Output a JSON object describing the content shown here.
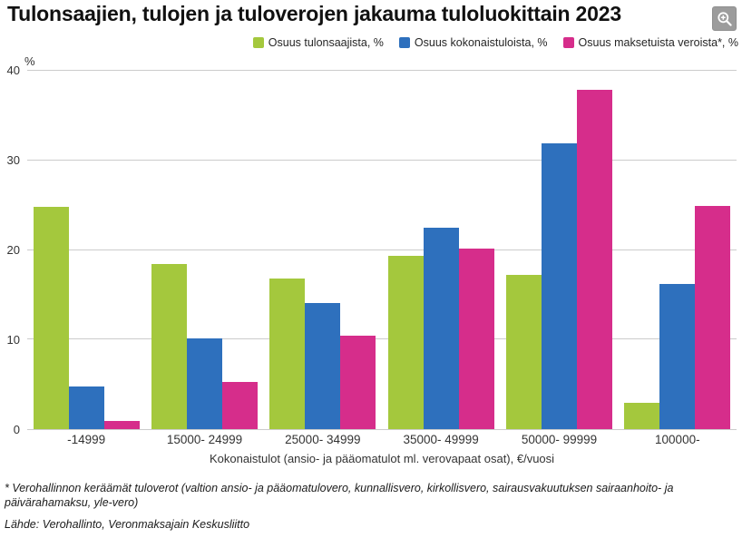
{
  "header": {
    "title": "Tulonsaajien, tulojen ja tuloverojen jakauma tuloluokittain 2023"
  },
  "chart_data": {
    "type": "bar",
    "title": "Tulonsaajien, tulojen ja tuloverojen jakauma tuloluokittain 2023",
    "categories": [
      "-14999",
      "15000- 24999",
      "25000- 34999",
      "35000- 49999",
      "50000- 99999",
      "100000-"
    ],
    "series": [
      {
        "name": "Osuus tulonsaajista, %",
        "color": "#a4c83d",
        "values": [
          24.8,
          18.4,
          16.8,
          19.3,
          17.2,
          2.9
        ]
      },
      {
        "name": "Osuus kokonaistuloista, %",
        "color": "#2e70bd",
        "values": [
          4.8,
          10.1,
          14.1,
          22.5,
          31.9,
          16.2
        ]
      },
      {
        "name": "Osuus maksetuista veroista*, %",
        "color": "#d62d8b",
        "values": [
          0.9,
          5.3,
          10.4,
          20.2,
          37.9,
          24.9
        ]
      }
    ],
    "ylabel": "%",
    "xlabel": "Kokonaistulot (ansio- ja pääomatulot ml. verovapaat osat), €/vuosi",
    "yticks": [
      0,
      10,
      20,
      30,
      40
    ],
    "ylim": [
      0,
      40
    ],
    "grid": true,
    "legend_position": "top-right"
  },
  "footnote": "* Verohallinnon keräämät tuloverot (valtion ansio- ja pääomatulovero, kunnallisvero, kirkollisvero, sairausvakuutuksen sairaanhoito- ja päivärahamaksu, yle-vero)",
  "source": "Lähde: Verohallinto, Veronmaksajain Keskusliitto"
}
